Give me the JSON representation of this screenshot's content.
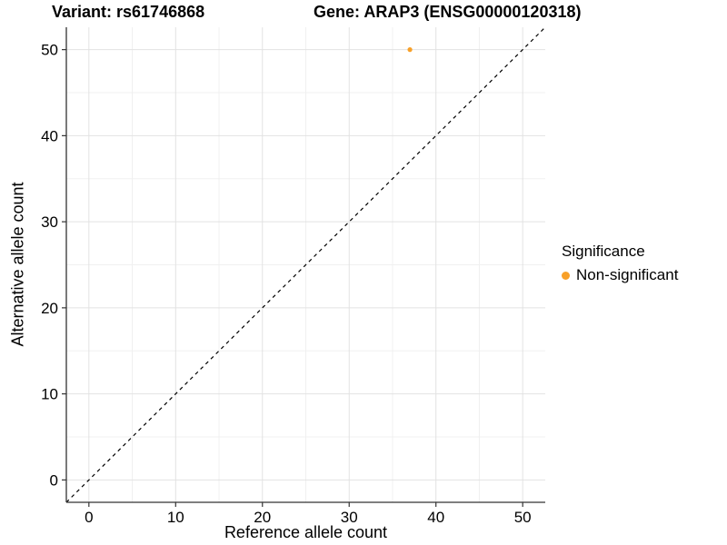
{
  "chart_data": {
    "type": "scatter",
    "titles": {
      "variant": "Variant: rs61746868",
      "gene": "Gene: ARAP3 (ENSG00000120318)"
    },
    "xlabel": "Reference allele count",
    "ylabel": "Alternative allele count",
    "xlim": [
      -2.6,
      52.6
    ],
    "ylim": [
      -2.6,
      52.6
    ],
    "x_ticks": [
      0,
      10,
      20,
      30,
      40,
      50
    ],
    "y_ticks": [
      0,
      10,
      20,
      30,
      40,
      50
    ],
    "x_minor_ticks": [
      5,
      15,
      25,
      35,
      45
    ],
    "y_minor_ticks": [
      5,
      15,
      25,
      35,
      45
    ],
    "grid": true,
    "legend": {
      "title": "Significance",
      "position": "right"
    },
    "series": [
      {
        "name": "Non-significant",
        "color": "#F8A028",
        "points": [
          {
            "x": 37,
            "y": 50
          }
        ]
      }
    ],
    "reference_line": {
      "kind": "identity",
      "dash": "dashed",
      "color": "#000000"
    },
    "colors": {
      "grid_major": "#E2E2E2",
      "grid_minor": "#F0F0F0",
      "axis": "#333333",
      "tick_label": "#000000",
      "background": "#FFFFFF"
    }
  }
}
